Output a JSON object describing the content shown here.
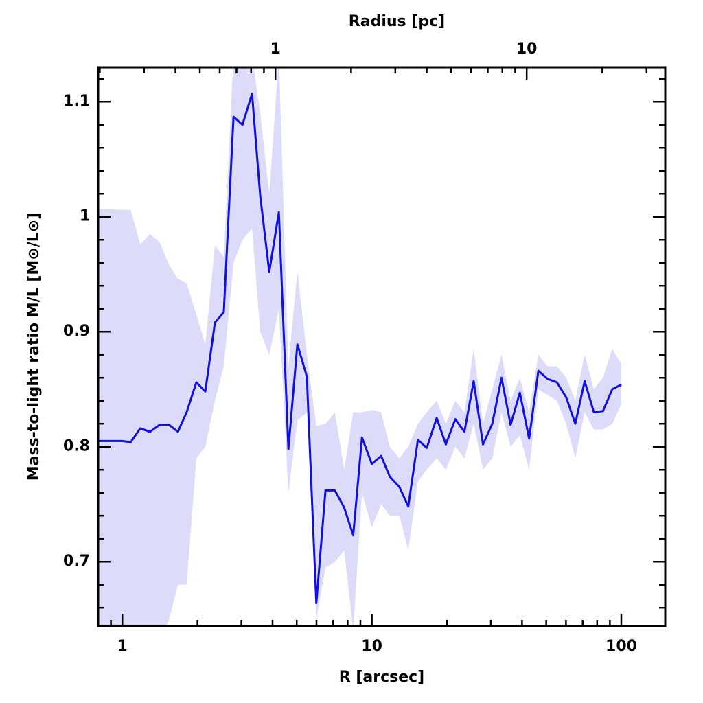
{
  "chart_data": {
    "type": "line",
    "xlabel": "R [arcsec]",
    "ylabel": "Mass-to-light ratio M/L [M⊙/L⊙]",
    "x2label": "Radius [pc]",
    "xscale": "log",
    "x2scale": "log",
    "xlim": [
      0.8,
      150
    ],
    "x2lim": [
      0.197,
      35.6
    ],
    "ylim": [
      0.644,
      1.13
    ],
    "xticks": [
      1,
      10,
      100
    ],
    "x2ticks": [
      1,
      10
    ],
    "yticks": [
      0.7,
      0.8,
      0.9,
      1,
      1.1
    ],
    "xminorticks": [
      0.8,
      0.9,
      2,
      3,
      4,
      5,
      6,
      7,
      8,
      9,
      20,
      30,
      40,
      50,
      60,
      70,
      80,
      90
    ],
    "x2minorticks": [
      0.2,
      0.3,
      0.4,
      0.5,
      0.6,
      0.7,
      0.8,
      0.9,
      2,
      3,
      4,
      5,
      6,
      7,
      8,
      9,
      20,
      30
    ],
    "yminorticks": [
      0.66,
      0.68,
      0.72,
      0.74,
      0.76,
      0.78,
      0.82,
      0.84,
      0.86,
      0.88,
      0.92,
      0.94,
      0.96,
      0.98,
      1.02,
      1.04,
      1.06,
      1.08,
      1.12
    ],
    "color": "#1010e0",
    "band_color": "#dcdcfa",
    "x": [
      0.8,
      1.0,
      1.08,
      1.18,
      1.29,
      1.41,
      1.54,
      1.67,
      1.81,
      1.98,
      2.15,
      2.35,
      2.55,
      2.79,
      3.03,
      3.31,
      3.57,
      3.88,
      4.24,
      4.63,
      5.03,
      5.49,
      5.99,
      6.52,
      7.11,
      7.75,
      8.42,
      9.13,
      10.0,
      10.9,
      11.8,
      12.9,
      14.0,
      15.3,
      16.6,
      18.2,
      19.8,
      21.6,
      23.5,
      25.6,
      27.9,
      30.4,
      33.1,
      36.0,
      39.2,
      42.7,
      46.5,
      50.6,
      55.2,
      60.1,
      65.4,
      71.3,
      77.6,
      84.4,
      92.0,
      100
    ],
    "values": [
      0.805,
      0.805,
      0.804,
      0.816,
      0.813,
      0.819,
      0.819,
      0.813,
      0.83,
      0.856,
      0.848,
      0.908,
      0.917,
      1.087,
      1.08,
      1.107,
      1.018,
      0.952,
      1.004,
      0.798,
      0.889,
      0.861,
      0.664,
      0.762,
      0.762,
      0.747,
      0.723,
      0.808,
      0.785,
      0.792,
      0.774,
      0.765,
      0.748,
      0.806,
      0.799,
      0.825,
      0.802,
      0.824,
      0.813,
      0.857,
      0.802,
      0.82,
      0.86,
      0.819,
      0.847,
      0.807,
      0.866,
      0.859,
      0.856,
      0.843,
      0.82,
      0.857,
      0.83,
      0.831,
      0.85,
      0.854
    ],
    "upper": [
      1.007,
      1.006,
      1.006,
      0.976,
      0.985,
      0.978,
      0.958,
      0.946,
      0.942,
      0.915,
      0.889,
      0.975,
      0.965,
      1.14,
      1.14,
      1.14,
      1.09,
      1.02,
      1.14,
      0.87,
      0.953,
      0.88,
      0.818,
      0.82,
      0.83,
      0.78,
      0.83,
      0.83,
      0.832,
      0.83,
      0.8,
      0.79,
      0.8,
      0.82,
      0.83,
      0.84,
      0.82,
      0.84,
      0.83,
      0.885,
      0.82,
      0.85,
      0.88,
      0.84,
      0.86,
      0.83,
      0.88,
      0.87,
      0.87,
      0.86,
      0.84,
      0.88,
      0.85,
      0.86,
      0.885,
      0.872
    ],
    "lower": [
      0.6,
      0.6,
      0.6,
      0.62,
      0.6,
      0.63,
      0.65,
      0.68,
      0.68,
      0.79,
      0.8,
      0.84,
      0.87,
      0.96,
      0.98,
      0.99,
      0.9,
      0.88,
      0.92,
      0.76,
      0.823,
      0.83,
      0.65,
      0.695,
      0.7,
      0.71,
      0.64,
      0.76,
      0.73,
      0.75,
      0.74,
      0.74,
      0.71,
      0.77,
      0.78,
      0.79,
      0.78,
      0.8,
      0.79,
      0.82,
      0.78,
      0.79,
      0.83,
      0.8,
      0.81,
      0.78,
      0.85,
      0.845,
      0.84,
      0.82,
      0.79,
      0.83,
      0.815,
      0.815,
      0.82,
      0.837
    ]
  }
}
